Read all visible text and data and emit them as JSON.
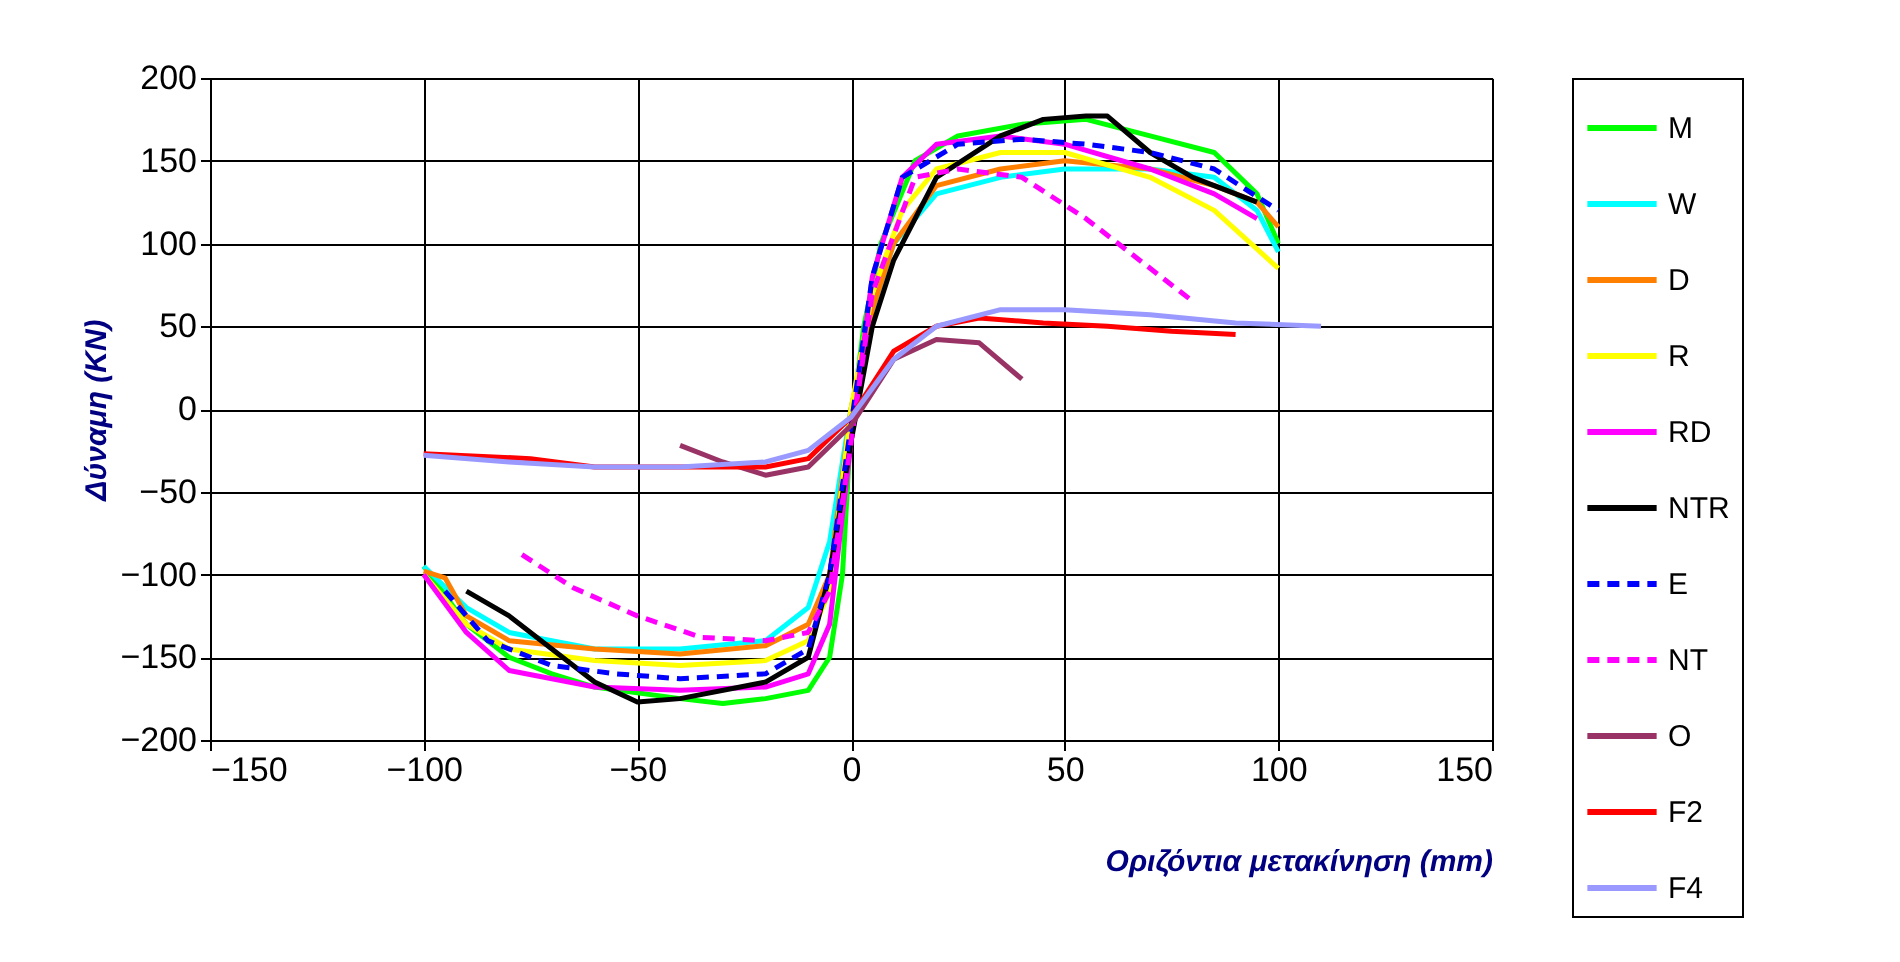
{
  "chart_data": {
    "type": "line",
    "xlabel": "Οριζόντια μετακίνηση (mm)",
    "ylabel": "Δύναμη  (KN)",
    "xlim": [
      -150,
      150
    ],
    "xticks": [
      -150,
      -100,
      -50,
      0,
      50,
      100,
      150
    ],
    "ylim": [
      -200,
      200
    ],
    "yticks": [
      -200,
      -150,
      -100,
      -50,
      0,
      50,
      100,
      150,
      200
    ],
    "grid": true,
    "legend": "right",
    "line_style": "solid",
    "marker": "none",
    "series": [
      {
        "name": "M",
        "color": "#00ff00",
        "x": [
          -100,
          -90,
          -80,
          -70,
          -60,
          -40,
          -30,
          -20,
          -10,
          -5,
          -2,
          0,
          3,
          7,
          15,
          25,
          40,
          55,
          70,
          85,
          95,
          100
        ],
        "values": [
          -95,
          -130,
          -150,
          -160,
          -168,
          -175,
          -178,
          -175,
          -170,
          -150,
          -100,
          -10,
          50,
          100,
          150,
          165,
          172,
          175,
          165,
          155,
          130,
          100
        ]
      },
      {
        "name": "W",
        "color": "#00ffff",
        "x": [
          -100,
          -90,
          -80,
          -60,
          -40,
          -20,
          -10,
          -5,
          0,
          5,
          10,
          20,
          35,
          50,
          70,
          85,
          95,
          100
        ],
        "values": [
          -95,
          -120,
          -135,
          -145,
          -145,
          -140,
          -120,
          -80,
          0,
          60,
          100,
          130,
          140,
          145,
          145,
          140,
          120,
          95
        ]
      },
      {
        "name": "D",
        "color": "#ff8000",
        "x": [
          -100,
          -95,
          -90,
          -80,
          -60,
          -40,
          -20,
          -10,
          -5,
          0,
          5,
          10,
          20,
          35,
          50,
          70,
          85,
          95,
          100
        ],
        "values": [
          -98,
          -102,
          -125,
          -140,
          -145,
          -148,
          -143,
          -130,
          -100,
          0,
          60,
          100,
          135,
          145,
          150,
          145,
          135,
          125,
          110
        ]
      },
      {
        "name": "R",
        "color": "#ffff00",
        "x": [
          -100,
          -90,
          -80,
          -60,
          -40,
          -20,
          -10,
          -5,
          0,
          5,
          12,
          20,
          35,
          50,
          70,
          85,
          100
        ],
        "values": [
          -100,
          -130,
          -145,
          -152,
          -155,
          -152,
          -140,
          -110,
          0,
          70,
          120,
          145,
          155,
          155,
          140,
          120,
          85
        ]
      },
      {
        "name": "RD",
        "color": "#ff00ff",
        "x": [
          -100,
          -90,
          -80,
          -60,
          -40,
          -20,
          -10,
          -5,
          0,
          5,
          12,
          20,
          35,
          50,
          70,
          85,
          95
        ],
        "values": [
          -100,
          -135,
          -158,
          -168,
          -170,
          -168,
          -160,
          -130,
          -20,
          80,
          140,
          160,
          165,
          160,
          145,
          130,
          115
        ]
      },
      {
        "name": "NTR",
        "color": "#000000",
        "x": [
          -90,
          -80,
          -70,
          -60,
          -50,
          -40,
          -20,
          -10,
          -5,
          0,
          5,
          10,
          20,
          35,
          45,
          55,
          60,
          70,
          80,
          95
        ],
        "values": [
          -110,
          -125,
          -145,
          -165,
          -177,
          -175,
          -165,
          -150,
          -100,
          -20,
          50,
          90,
          140,
          165,
          175,
          177,
          177,
          155,
          140,
          125
        ]
      },
      {
        "name": "E",
        "color": "#0000ff",
        "line_style": "dashed",
        "x": [
          -95,
          -85,
          -70,
          -55,
          -40,
          -20,
          -10,
          -5,
          0,
          5,
          12,
          25,
          40,
          55,
          70,
          85,
          100
        ],
        "values": [
          -110,
          -140,
          -155,
          -160,
          -163,
          -160,
          -145,
          -100,
          -10,
          80,
          140,
          160,
          163,
          160,
          155,
          145,
          120
        ]
      },
      {
        "name": "NT",
        "color": "#ff00ff",
        "line_style": "dashed",
        "x": [
          -77,
          -65,
          -50,
          -35,
          -20,
          -10,
          -5,
          0,
          5,
          15,
          25,
          40,
          55,
          65,
          80
        ],
        "values": [
          -88,
          -108,
          -125,
          -138,
          -140,
          -135,
          -110,
          -20,
          70,
          140,
          145,
          140,
          115,
          95,
          65
        ]
      },
      {
        "name": "O",
        "color": "#993366",
        "x": [
          -40,
          -30,
          -20,
          -10,
          0,
          10,
          20,
          30,
          40
        ],
        "values": [
          -22,
          -32,
          -40,
          -35,
          -10,
          30,
          42,
          40,
          18
        ]
      },
      {
        "name": "F2",
        "color": "#ff0000",
        "x": [
          -100,
          -75,
          -60,
          -40,
          -20,
          -10,
          0,
          10,
          20,
          30,
          45,
          60,
          75,
          90
        ],
        "values": [
          -27,
          -30,
          -35,
          -35,
          -35,
          -30,
          -5,
          35,
          50,
          55,
          52,
          50,
          47,
          45
        ]
      },
      {
        "name": "F4",
        "color": "#9999ff",
        "x": [
          -100,
          -80,
          -60,
          -40,
          -20,
          -10,
          0,
          10,
          20,
          35,
          50,
          70,
          90,
          110
        ],
        "values": [
          -28,
          -32,
          -35,
          -35,
          -32,
          -25,
          -5,
          30,
          50,
          60,
          60,
          57,
          52,
          50
        ]
      }
    ]
  }
}
